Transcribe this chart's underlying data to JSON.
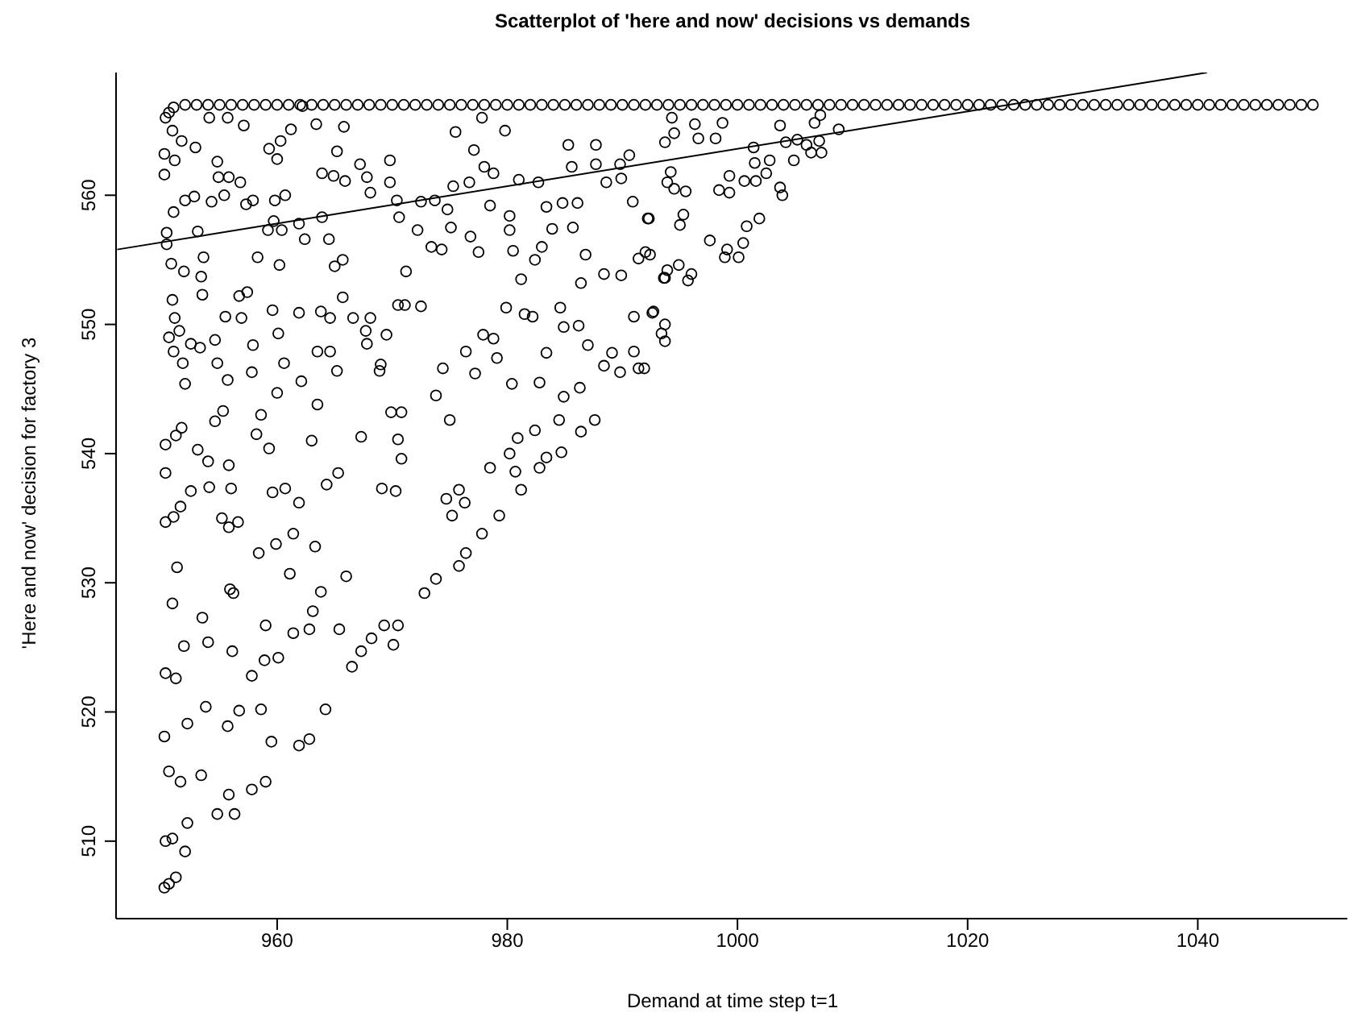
{
  "chart_data": {
    "type": "scatter",
    "title": "Scatterplot of 'here and now' decisions vs demands",
    "xlabel": "Demand at time step t=1",
    "ylabel": "'Here and now' decision for factory 3",
    "xlim": [
      946,
      1053
    ],
    "ylim": [
      504,
      569.5
    ],
    "xticks": [
      960,
      980,
      1000,
      1020,
      1040
    ],
    "yticks": [
      510,
      520,
      530,
      540,
      550,
      560
    ],
    "grid": false,
    "marker": "circle",
    "series": [
      {
        "color": "#000000",
        "x": [
          950.2,
          950.6,
          951.2,
          950.3,
          950.9,
          952.0,
          952.2,
          950.2,
          950.6,
          951.6,
          953.4,
          954.8,
          955.8,
          956.3,
          957.8,
          959.0,
          959.5,
          961.9,
          962.8,
          964.2,
          958.6,
          956.7,
          955.7,
          953.8,
          952.2,
          950.3,
          951.2,
          951.9,
          953.5,
          954.0,
          956.1,
          957.8,
          958.9,
          960.1,
          959.0,
          961.4,
          962.8,
          965.4,
          966.5,
          967.3,
          966.0,
          968.2,
          969.3,
          970.1,
          970.5,
          972.8,
          973.8,
          950.9,
          951.3,
          950.3,
          951.0,
          951.6,
          952.5,
          954.1,
          954.0,
          953.1,
          950.3,
          950.3,
          951.2,
          951.7,
          954.6,
          955.3,
          955.8,
          956.0,
          956.6,
          955.2,
          955.8,
          956.2,
          955.9,
          958.4,
          959.9,
          961.1,
          961.4,
          961.9,
          963.5,
          963.0,
          960.0,
          958.6,
          958.2,
          959.3,
          959.6,
          960.7,
          963.3,
          963.8,
          963.1,
          964.3,
          965.3,
          967.3,
          969.1,
          970.3,
          970.8,
          970.5,
          969.9,
          970.8,
          968.9,
          967.8,
          968.1,
          971.1,
          972.5,
          974.4,
          973.8,
          975.0,
          974.7,
          975.2,
          975.8,
          976.3,
          975.8,
          976.4,
          977.8,
          979.3,
          978.5,
          980.2,
          981.2,
          980.7,
          980.9,
          982.4,
          982.8,
          983.4,
          984.7,
          986.4,
          987.6,
          984.5,
          986.3,
          984.9,
          983.4,
          982.8,
          980.4,
          979.1,
          977.2,
          976.4,
          977.9,
          978.8,
          979.9,
          981.5,
          982.2,
          984.6,
          984.9,
          986.2,
          986.4,
          987.0,
          988.4,
          989.1,
          989.8,
          991.0,
          991.4,
          991.0,
          992.6,
          989.9,
          988.4,
          988.6,
          989.9,
          990.9,
          992.2,
          992.0,
          991.4,
          993.7,
          990.6,
          989.8,
          987.7,
          987.7,
          986.1,
          984.8,
          985.7,
          986.8,
          985.6,
          985.3,
          982.7,
          983.4,
          983.9,
          983.0,
          982.4,
          981.2,
          980.5,
          980.2,
          980.2,
          981.0,
          978.8,
          978.0,
          977.1,
          979.8,
          977.8,
          975.5,
          976.7,
          975.3,
          974.8,
          975.1,
          976.8,
          977.5,
          978.5,
          973.7,
          972.5,
          972.2,
          973.4,
          974.3,
          971.2,
          970.6,
          970.4,
          969.8,
          969.8,
          968.1,
          967.8,
          967.2,
          965.9,
          964.9,
          963.9,
          965.2,
          965.8,
          963.4,
          962.2,
          961.2,
          960.3,
          959.3,
          960.0,
          960.7,
          959.8,
          959.7,
          959.2,
          960.4,
          960.2,
          961.9,
          962.4,
          963.9,
          964.5,
          965.0,
          965.7,
          958.3,
          957.9,
          957.3,
          956.8,
          955.8,
          955.4,
          954.3,
          952.8,
          952.0,
          951.0,
          950.4,
          950.4,
          953.1,
          953.6,
          953.4,
          953.5,
          951.9,
          950.8,
          950.2,
          950.2,
          951.1,
          950.9,
          951.7,
          952.9,
          954.8,
          954.9,
          954.1,
          955.7,
          957.1,
          950.9,
          951.1,
          951.5,
          950.6,
          951.0,
          951.8,
          952.0,
          952.5,
          953.3,
          954.6,
          954.8,
          955.7,
          955.5,
          956.9,
          956.7,
          957.4,
          957.9,
          957.8,
          959.6,
          960.1,
          960.6,
          961.9,
          962.1,
          963.5,
          964.6,
          963.8,
          964.6,
          965.2,
          965.7,
          966.6,
          967.7,
          969.5,
          970.5,
          969.0,
          994.3,
          996.3,
          993.7,
          994.5,
          996.6,
          998.1,
          998.7,
          1001.4,
          1001.5,
          1002.8,
          1003.7,
          1004.2,
          1005.2,
          1006.0,
          1006.4,
          1007.1,
          1007.3,
          1006.7,
          1007.2,
          1008.8,
          1004.9,
          1002.5,
          1001.6,
          1000.6,
          999.3,
          998.4,
          999.3,
          1003.7,
          1003.9,
          994.2,
          993.9,
          994.5,
          995.5,
          992.3,
          995.3,
          995.0,
          1001.9,
          1000.8,
          1000.5,
          997.6,
          999.1,
          998.9,
          1000.1,
          992.4,
          993.9,
          993.6,
          994.9,
          996.0,
          995.7,
          992.7,
          993.7,
          993.4,
          993.7,
          991.9
        ],
        "values": [
          506.4,
          506.7,
          507.2,
          510.0,
          510.2,
          509.2,
          511.4,
          518.1,
          515.4,
          514.6,
          515.1,
          512.1,
          513.6,
          512.1,
          514.0,
          514.6,
          517.7,
          517.4,
          517.9,
          520.2,
          520.2,
          520.1,
          518.9,
          520.4,
          519.1,
          523.0,
          522.6,
          525.1,
          527.3,
          525.4,
          524.7,
          522.8,
          524.0,
          524.2,
          526.7,
          526.1,
          526.4,
          526.4,
          523.5,
          524.7,
          530.5,
          525.7,
          526.7,
          525.2,
          526.7,
          529.2,
          530.3,
          528.4,
          531.2,
          534.7,
          535.1,
          535.9,
          537.1,
          537.4,
          539.4,
          540.3,
          540.7,
          538.5,
          541.4,
          542.0,
          542.5,
          543.3,
          539.1,
          537.3,
          534.7,
          535.0,
          534.3,
          529.2,
          529.5,
          532.3,
          533.0,
          530.7,
          533.8,
          536.2,
          543.8,
          541.0,
          544.7,
          543.0,
          541.5,
          540.4,
          537.0,
          537.3,
          532.8,
          529.3,
          527.8,
          537.6,
          538.5,
          541.3,
          537.3,
          537.1,
          539.6,
          541.1,
          543.2,
          543.2,
          546.4,
          548.5,
          550.5,
          551.5,
          551.4,
          546.6,
          544.5,
          542.6,
          536.5,
          535.2,
          537.2,
          536.2,
          531.3,
          532.3,
          533.8,
          535.2,
          538.9,
          540.0,
          537.2,
          538.6,
          541.2,
          541.8,
          538.9,
          539.7,
          540.1,
          541.7,
          542.6,
          542.6,
          545.1,
          544.4,
          547.8,
          545.5,
          545.4,
          547.4,
          546.2,
          547.9,
          549.2,
          548.9,
          551.3,
          550.8,
          550.6,
          551.3,
          549.8,
          549.9,
          553.2,
          548.4,
          546.8,
          547.8,
          546.3,
          547.9,
          546.6,
          550.6,
          550.9,
          553.8,
          553.9,
          561.0,
          561.3,
          559.5,
          558.2,
          555.6,
          555.1,
          553.6,
          563.1,
          562.4,
          563.9,
          562.4,
          559.4,
          559.4,
          557.5,
          555.4,
          562.2,
          563.9,
          561.0,
          559.1,
          557.4,
          556.0,
          555.0,
          553.5,
          555.7,
          557.3,
          558.4,
          561.2,
          561.7,
          562.2,
          563.5,
          565.0,
          566.0,
          564.9,
          561.0,
          560.7,
          558.9,
          557.5,
          556.8,
          555.6,
          559.2,
          559.6,
          559.5,
          557.3,
          556.0,
          555.8,
          554.1,
          558.3,
          559.6,
          561.0,
          562.7,
          560.2,
          561.4,
          562.4,
          561.1,
          561.5,
          561.7,
          563.4,
          565.3,
          565.5,
          566.9,
          565.1,
          564.2,
          563.6,
          562.8,
          560.0,
          559.6,
          558.0,
          557.3,
          557.3,
          554.6,
          557.8,
          556.6,
          558.3,
          556.6,
          554.5,
          555.0,
          555.2,
          559.6,
          559.3,
          561.0,
          561.4,
          560.0,
          559.5,
          559.9,
          559.6,
          558.7,
          557.1,
          556.2,
          557.2,
          555.2,
          553.7,
          552.3,
          554.1,
          554.7,
          561.6,
          563.2,
          562.7,
          565.0,
          564.2,
          563.7,
          562.6,
          561.4,
          566.0,
          566.0,
          565.4,
          551.9,
          550.5,
          549.5,
          549.0,
          547.9,
          547.0,
          545.4,
          548.5,
          548.2,
          548.8,
          547.0,
          545.7,
          550.6,
          550.5,
          552.2,
          552.5,
          548.4,
          546.3,
          551.1,
          549.3,
          547.0,
          550.9,
          545.6,
          547.9,
          547.9,
          551.0,
          550.5,
          546.4,
          552.1,
          550.5,
          549.5,
          549.2,
          551.5,
          546.9,
          566.0,
          565.5,
          564.1,
          564.8,
          564.4,
          564.4,
          565.6,
          563.7,
          562.5,
          562.7,
          565.4,
          564.1,
          564.3,
          563.9,
          563.3,
          564.2,
          563.3,
          565.6,
          566.2,
          565.1,
          562.7,
          561.7,
          561.1,
          561.1,
          561.5,
          560.4,
          560.2,
          560.6,
          560.0,
          561.8,
          561.0,
          560.5,
          560.3,
          558.2,
          558.5,
          557.7,
          558.2,
          557.6,
          556.3,
          556.5,
          555.8,
          555.2,
          555.2,
          555.4,
          554.2,
          553.6,
          554.6,
          553.9,
          553.4,
          551.0,
          550.0,
          549.3,
          548.7,
          546.6
        ]
      },
      {
        "color": "#000000",
        "x": [
          950.3,
          950.6,
          951,
          952,
          953,
          954,
          955,
          956,
          957,
          958,
          959,
          960,
          961,
          962,
          963,
          964,
          965,
          966,
          967,
          968,
          969,
          970,
          971,
          972,
          973,
          974,
          975,
          976,
          977,
          978,
          979,
          980,
          981,
          982,
          983,
          984,
          985,
          986,
          987,
          988,
          989,
          990,
          991,
          992,
          993,
          994,
          995,
          996,
          997,
          998,
          999,
          1000,
          1001,
          1002,
          1003,
          1004,
          1005,
          1006,
          1007,
          1008,
          1009,
          1010,
          1011,
          1012,
          1013,
          1014,
          1015,
          1016,
          1017,
          1018,
          1019,
          1020,
          1021,
          1022,
          1023,
          1024,
          1025,
          1026,
          1027,
          1028,
          1029,
          1030,
          1031,
          1032,
          1033,
          1034,
          1035,
          1036,
          1037,
          1038,
          1039,
          1040,
          1041,
          1042,
          1043,
          1044,
          1045,
          1046,
          1047,
          1048,
          1049,
          1050
        ],
        "values": [
          566.0,
          566.4,
          566.8,
          567,
          567,
          567,
          567,
          567,
          567,
          567,
          567,
          567,
          567,
          567,
          567,
          567,
          567,
          567,
          567,
          567,
          567,
          567,
          567,
          567,
          567,
          567,
          567,
          567,
          567,
          567,
          567,
          567,
          567,
          567,
          567,
          567,
          567,
          567,
          567,
          567,
          567,
          567,
          567,
          567,
          567,
          567,
          567,
          567,
          567,
          567,
          567,
          567,
          567,
          567,
          567,
          567,
          567,
          567,
          567,
          567,
          567,
          567,
          567,
          567,
          567,
          567,
          567,
          567,
          567,
          567,
          567,
          567,
          567,
          567,
          567,
          567,
          567,
          567,
          567,
          567,
          567,
          567,
          567,
          567,
          567,
          567,
          567,
          567,
          567,
          567,
          567,
          567,
          567,
          567,
          567,
          567,
          567,
          567,
          567,
          567,
          567,
          567
        ]
      },
      {
        "type": "line",
        "color": "#000000",
        "marker": "none",
        "x": [
          946.1,
          1040.8
        ],
        "values": [
          555.8,
          569.5
        ]
      }
    ]
  }
}
